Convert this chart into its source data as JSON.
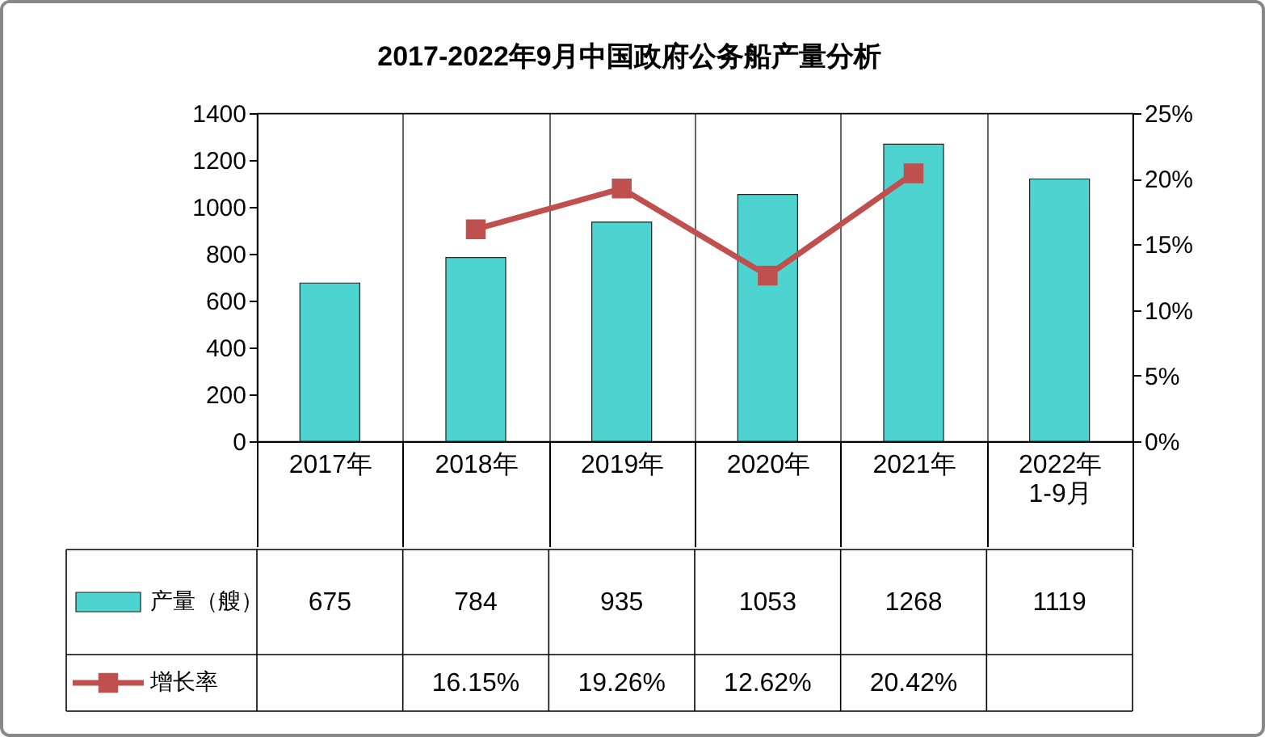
{
  "chart_data": {
    "type": "bar",
    "title": "2017-2022年9月中国政府公务船产量分析",
    "categories": [
      "2017年",
      "2018年",
      "2019年",
      "2020年",
      "2021年",
      "2022年\n1-9月"
    ],
    "series": [
      {
        "name": "产量（艘）",
        "color": "#4dd4d0",
        "values": [
          675,
          784,
          935,
          1053,
          1268,
          1119
        ],
        "value_labels": [
          "675",
          "784",
          "935",
          "1053",
          "1268",
          "1119"
        ]
      },
      {
        "name": "增长率",
        "type": "line",
        "axis": "y2",
        "color": "#c0504d",
        "values": [
          null,
          16.15,
          19.26,
          12.62,
          20.42,
          null
        ],
        "value_labels": [
          null,
          "16.15%",
          "19.26%",
          "12.62%",
          "20.42%",
          null
        ]
      }
    ],
    "ylim": [
      0,
      1400
    ],
    "yticks": [
      0,
      200,
      400,
      600,
      800,
      1000,
      1200,
      1400
    ],
    "y2lim": [
      0,
      25
    ],
    "y2ticks": [
      {
        "value": 0,
        "label": "0%"
      },
      {
        "value": 5,
        "label": "5%"
      },
      {
        "value": 10,
        "label": "10%"
      },
      {
        "value": 15,
        "label": "15%"
      },
      {
        "value": 20,
        "label": "20%"
      },
      {
        "value": 25,
        "label": "25%"
      }
    ],
    "grid": "x",
    "legend": "bottom left",
    "marker": "square",
    "line_style": "solid"
  }
}
